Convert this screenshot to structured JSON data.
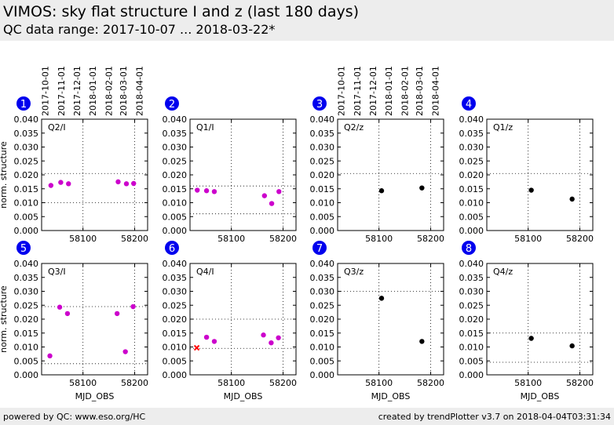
{
  "header": {
    "title": "VIMOS: sky flat structure I and z (last 180 days)",
    "subtitle": "QC data range: 2017-10-07 ... 2018-03-22*"
  },
  "footer": {
    "left": "powered by QC: www.eso.org/HC",
    "right": "created by trendPlotter v3.7 on 2018-04-04T03:31:34"
  },
  "colors": {
    "filter_I": "#cc00cc",
    "filter_z": "#000000",
    "outlier": "#ff0000",
    "badge": "#0000ee"
  },
  "date_ticks": [
    "2017-10-01",
    "2017-11-01",
    "2017-12-01",
    "2018-01-01",
    "2018-02-01",
    "2018-03-01",
    "2018-04-01"
  ],
  "chart_data": [
    {
      "type": "scatter",
      "panel": "1",
      "label": "Q2/I",
      "color": "#cc00cc",
      "xlabel": "",
      "ylabel": "norm. structure",
      "xlim": [
        58020,
        58225
      ],
      "ylim": [
        0,
        0.04
      ],
      "xticks": [
        58100,
        58200
      ],
      "yticks": [
        "0.000",
        "0.005",
        "0.010",
        "0.015",
        "0.020",
        "0.025",
        "0.030",
        "0.035",
        "0.040"
      ],
      "ref_lines": [
        0.01,
        0.0205
      ],
      "points": [
        [
          58038,
          0.0162
        ],
        [
          58057,
          0.0173
        ],
        [
          58072,
          0.0168
        ],
        [
          58168,
          0.0175
        ],
        [
          58184,
          0.0168
        ],
        [
          58198,
          0.0169
        ]
      ]
    },
    {
      "type": "scatter",
      "panel": "2",
      "label": "Q1/I",
      "color": "#cc00cc",
      "xlabel": "",
      "ylabel": "",
      "xlim": [
        58020,
        58225
      ],
      "ylim": [
        0,
        0.04
      ],
      "xticks": [
        58100,
        58200
      ],
      "yticks": [
        "0.000",
        "0.005",
        "0.010",
        "0.015",
        "0.020",
        "0.025",
        "0.030",
        "0.035",
        "0.040"
      ],
      "ref_lines": [
        0.006,
        0.016
      ],
      "points": [
        [
          58034,
          0.0145
        ],
        [
          58052,
          0.0143
        ],
        [
          58067,
          0.014
        ],
        [
          58164,
          0.0125
        ],
        [
          58178,
          0.0097
        ],
        [
          58192,
          0.014
        ]
      ]
    },
    {
      "type": "scatter",
      "panel": "3",
      "label": "Q2/z",
      "color": "#000000",
      "xlabel": "",
      "ylabel": "",
      "xlim": [
        58020,
        58225
      ],
      "ylim": [
        0,
        0.04
      ],
      "xticks": [
        58100,
        58200
      ],
      "yticks": [
        "0.000",
        "0.005",
        "0.010",
        "0.015",
        "0.020",
        "0.025",
        "0.030",
        "0.035",
        "0.040"
      ],
      "ref_lines": [
        0.0205
      ],
      "points": [
        [
          58105,
          0.0143
        ],
        [
          58183,
          0.0153
        ]
      ]
    },
    {
      "type": "scatter",
      "panel": "4",
      "label": "Q1/z",
      "color": "#000000",
      "xlabel": "",
      "ylabel": "",
      "xlim": [
        58020,
        58225
      ],
      "ylim": [
        0,
        0.04
      ],
      "xticks": [
        58100,
        58200
      ],
      "yticks": [
        "0.000",
        "0.005",
        "0.010",
        "0.015",
        "0.020",
        "0.025",
        "0.030",
        "0.035",
        "0.040"
      ],
      "ref_lines": [
        0.0205
      ],
      "points": [
        [
          58106,
          0.0145
        ],
        [
          58185,
          0.0113
        ]
      ]
    },
    {
      "type": "scatter",
      "panel": "5",
      "label": "Q3/I",
      "color": "#cc00cc",
      "xlabel": "MJD_OBS",
      "ylabel": "norm. structure",
      "xlim": [
        58020,
        58225
      ],
      "ylim": [
        0,
        0.04
      ],
      "xticks": [
        58100,
        58200
      ],
      "yticks": [
        "0.000",
        "0.005",
        "0.010",
        "0.015",
        "0.020",
        "0.025",
        "0.030",
        "0.035",
        "0.040"
      ],
      "ref_lines": [
        0.004,
        0.0245
      ],
      "points": [
        [
          58036,
          0.0068
        ],
        [
          58055,
          0.0243
        ],
        [
          58070,
          0.022
        ],
        [
          58166,
          0.022
        ],
        [
          58182,
          0.0083
        ],
        [
          58197,
          0.0245
        ]
      ]
    },
    {
      "type": "scatter",
      "panel": "6",
      "label": "Q4/I",
      "color": "#cc00cc",
      "xlabel": "MJD_OBS",
      "ylabel": "",
      "xlim": [
        58020,
        58225
      ],
      "ylim": [
        0,
        0.04
      ],
      "xticks": [
        58100,
        58200
      ],
      "yticks": [
        "0.000",
        "0.005",
        "0.010",
        "0.015",
        "0.020",
        "0.025",
        "0.030",
        "0.035",
        "0.040"
      ],
      "ref_lines": [
        0.0095,
        0.02
      ],
      "points": [
        [
          58052,
          0.0135
        ],
        [
          58067,
          0.012
        ],
        [
          58162,
          0.0143
        ],
        [
          58177,
          0.0115
        ],
        [
          58191,
          0.0133
        ]
      ],
      "outliers": [
        [
          58033,
          0.0097
        ]
      ]
    },
    {
      "type": "scatter",
      "panel": "7",
      "label": "Q3/z",
      "color": "#000000",
      "xlabel": "MJD_OBS",
      "ylabel": "",
      "xlim": [
        58020,
        58225
      ],
      "ylim": [
        0,
        0.04
      ],
      "xticks": [
        58100,
        58200
      ],
      "yticks": [
        "0.000",
        "0.005",
        "0.010",
        "0.015",
        "0.020",
        "0.025",
        "0.030",
        "0.035",
        "0.040"
      ],
      "ref_lines": [
        0.03
      ],
      "points": [
        [
          58105,
          0.0275
        ],
        [
          58183,
          0.012
        ]
      ]
    },
    {
      "type": "scatter",
      "panel": "8",
      "label": "Q4/z",
      "color": "#000000",
      "xlabel": "MJD_OBS",
      "ylabel": "",
      "xlim": [
        58020,
        58225
      ],
      "ylim": [
        0,
        0.04
      ],
      "xticks": [
        58100,
        58200
      ],
      "yticks": [
        "0.000",
        "0.005",
        "0.010",
        "0.015",
        "0.020",
        "0.025",
        "0.030",
        "0.035",
        "0.040"
      ],
      "ref_lines": [
        0.0045,
        0.015
      ],
      "points": [
        [
          58106,
          0.0131
        ],
        [
          58185,
          0.0104
        ]
      ]
    }
  ]
}
